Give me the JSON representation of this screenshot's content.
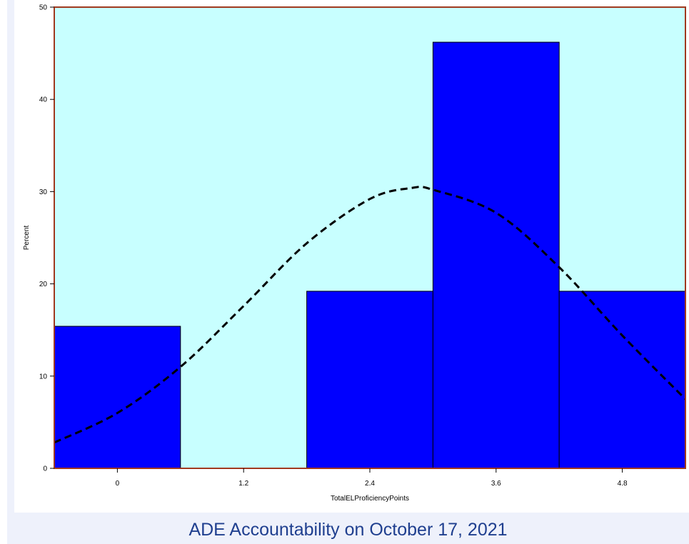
{
  "caption": "ADE Accountability on October 17, 2021",
  "colors": {
    "plot_background": "#c8ffff",
    "frame": "#a0391f",
    "bar_fill": "#0000ff",
    "bar_stroke": "#000000",
    "curve": "#000000",
    "caption": "#1f3f8f"
  },
  "chart_data": {
    "type": "bar",
    "title": "",
    "xlabel": "TotalELProficiencyPoints",
    "ylabel": "Percent",
    "xlim": [
      -0.6,
      5.4
    ],
    "ylim": [
      0,
      50
    ],
    "x_ticks": [
      0,
      1.2,
      2.4,
      3.6,
      4.8
    ],
    "x_tick_labels": [
      "0",
      "1.2",
      "2.4",
      "3.6",
      "4.8"
    ],
    "y_ticks": [
      0,
      10,
      20,
      30,
      40,
      50
    ],
    "y_tick_labels": [
      "0",
      "10",
      "20",
      "30",
      "40",
      "50"
    ],
    "bin_width": 1.2,
    "bins": [
      {
        "center": 0,
        "percent": 15.4
      },
      {
        "center": 1.2,
        "percent": 0
      },
      {
        "center": 2.4,
        "percent": 19.2
      },
      {
        "center": 3.6,
        "percent": 46.2
      },
      {
        "center": 4.8,
        "percent": 19.2
      }
    ],
    "curve": {
      "type": "normal",
      "style": "dashed",
      "points": [
        {
          "x": -0.6,
          "y": 2.8
        },
        {
          "x": 0.0,
          "y": 6.0
        },
        {
          "x": 0.6,
          "y": 11.0
        },
        {
          "x": 1.2,
          "y": 17.6
        },
        {
          "x": 1.8,
          "y": 24.4
        },
        {
          "x": 2.4,
          "y": 29.2
        },
        {
          "x": 2.8,
          "y": 30.4
        },
        {
          "x": 3.0,
          "y": 30.2
        },
        {
          "x": 3.6,
          "y": 27.7
        },
        {
          "x": 4.2,
          "y": 21.8
        },
        {
          "x": 4.8,
          "y": 14.4
        },
        {
          "x": 5.4,
          "y": 7.5
        }
      ]
    },
    "grid": false,
    "legend": "none"
  }
}
